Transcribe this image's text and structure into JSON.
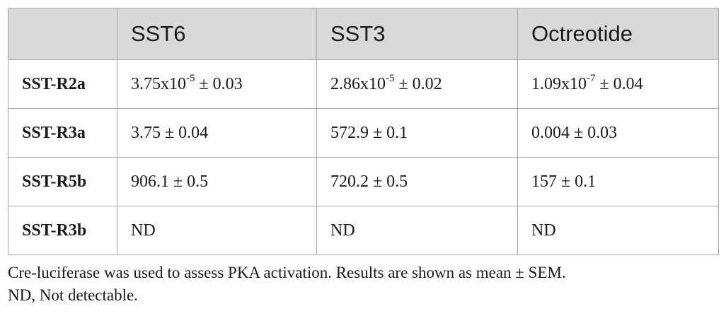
{
  "table": {
    "columns": [
      "",
      "SST6",
      "SST3",
      "Octreotide"
    ],
    "rows": [
      {
        "label": "SST-R2a",
        "cells": [
          {
            "base": "3.75x10",
            "exp": "-5",
            "rest": " ± 0.03"
          },
          {
            "base": "2.86x10",
            "exp": "-5",
            "rest": " ± 0.02"
          },
          {
            "base": "1.09x10",
            "exp": "-7",
            "rest": " ± 0.04"
          }
        ]
      },
      {
        "label": "SST-R3a",
        "cells": [
          {
            "base": "3.75 ± 0.04"
          },
          {
            "base": "572.9 ± 0.1"
          },
          {
            "base": "0.004 ± 0.03"
          }
        ]
      },
      {
        "label": "SST-R5b",
        "cells": [
          {
            "base": "906.1 ± 0.5"
          },
          {
            "base": "720.2 ± 0.5"
          },
          {
            "base": "157 ± 0.1"
          }
        ]
      },
      {
        "label": "SST-R3b",
        "cells": [
          {
            "base": "ND"
          },
          {
            "base": "ND"
          },
          {
            "base": "ND"
          }
        ]
      }
    ]
  },
  "footnote": {
    "line1": "Cre-luciferase was used to assess PKA activation. Results are shown as mean ± SEM.",
    "line2": "ND, Not detectable."
  },
  "colors": {
    "header_bg": "#d9d9d9",
    "border": "#a8a8a8",
    "text": "#1a1a1a"
  }
}
